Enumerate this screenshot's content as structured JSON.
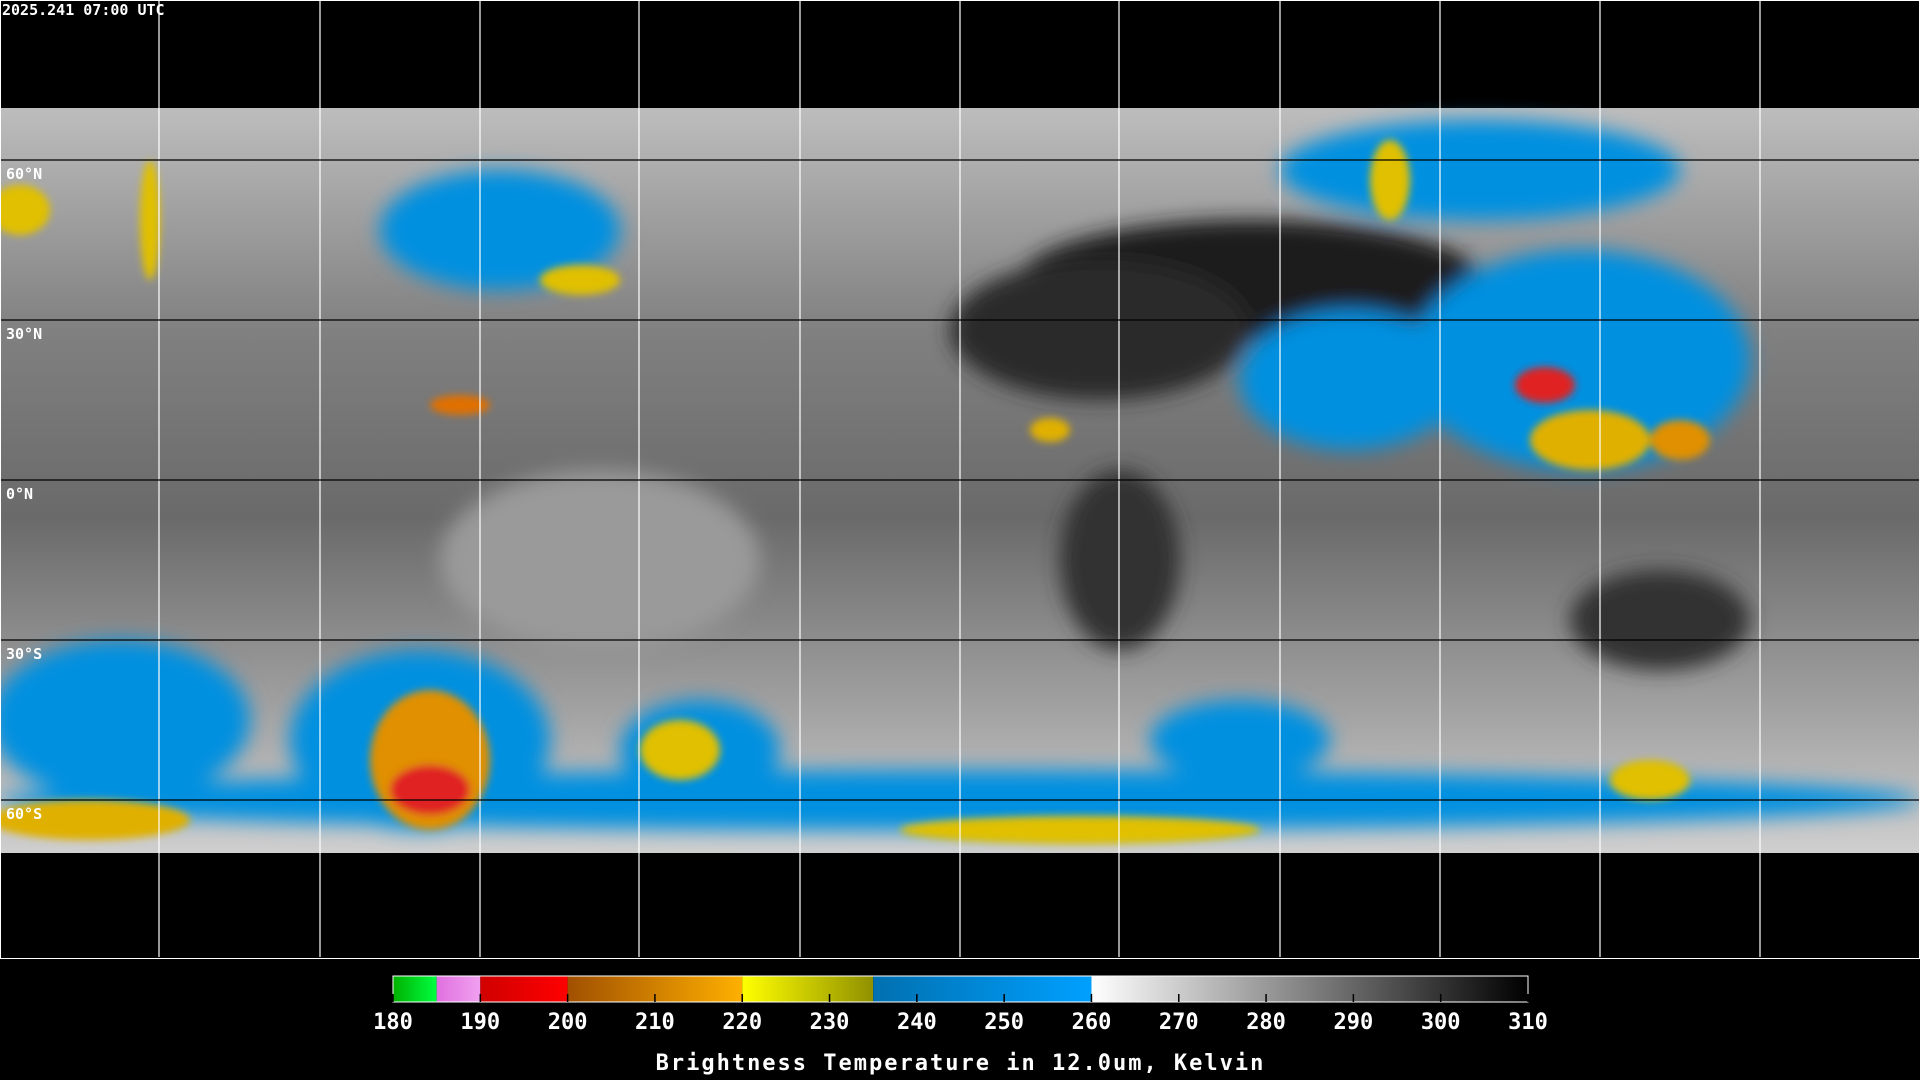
{
  "timestamp": "2025.241 07:00 UTC",
  "latitude_labels": [
    "60°N",
    "30°N",
    "0°N",
    "30°S",
    "60°S"
  ],
  "colorbar": {
    "title": "Brightness Temperature in 12.0um, Kelvin",
    "range": [
      180,
      310
    ],
    "ticks": [
      180,
      190,
      200,
      210,
      220,
      230,
      240,
      250,
      260,
      270,
      280,
      290,
      300,
      310
    ],
    "segments": [
      {
        "from": 180,
        "to": 185,
        "colors": [
          "#00b000",
          "#00ff40"
        ]
      },
      {
        "from": 185,
        "to": 190,
        "colors": [
          "#e070e0",
          "#f0a0f0"
        ]
      },
      {
        "from": 190,
        "to": 200,
        "colors": [
          "#d00000",
          "#ff0000"
        ]
      },
      {
        "from": 200,
        "to": 220,
        "colors": [
          "#a05000",
          "#ffb000"
        ]
      },
      {
        "from": 220,
        "to": 235,
        "colors": [
          "#ffff00",
          "#909000"
        ]
      },
      {
        "from": 235,
        "to": 260,
        "colors": [
          "#0070b0",
          "#00a0ff"
        ]
      },
      {
        "from": 260,
        "to": 310,
        "colors": [
          "#ffffff",
          "#000000"
        ]
      }
    ]
  }
}
